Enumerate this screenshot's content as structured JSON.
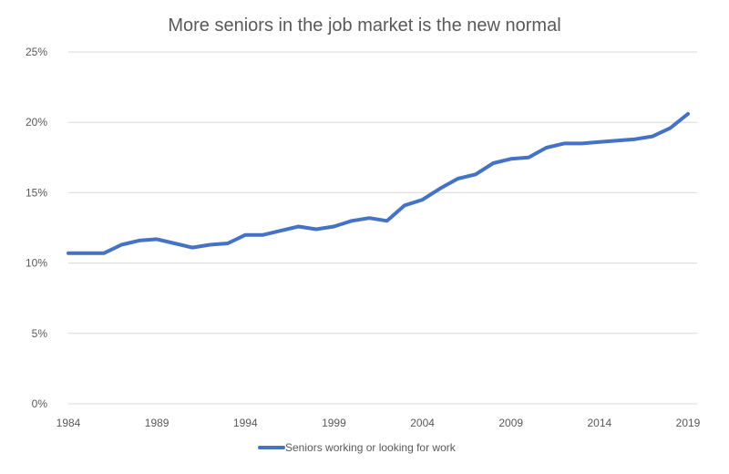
{
  "chart_data": {
    "type": "line",
    "title": "More seniors in the job market is the new normal",
    "xlabel": "",
    "ylabel": "",
    "x": [
      1984,
      1985,
      1986,
      1987,
      1988,
      1989,
      1990,
      1991,
      1992,
      1993,
      1994,
      1995,
      1996,
      1997,
      1998,
      1999,
      2000,
      2001,
      2002,
      2003,
      2004,
      2005,
      2006,
      2007,
      2008,
      2009,
      2010,
      2011,
      2012,
      2013,
      2014,
      2015,
      2016,
      2017,
      2018,
      2019
    ],
    "series": [
      {
        "name": "Seniors working or looking for work",
        "color": "#4472c4",
        "values": [
          10.7,
          10.7,
          10.7,
          11.3,
          11.6,
          11.7,
          11.4,
          11.1,
          11.3,
          11.4,
          12.0,
          12.0,
          12.3,
          12.6,
          12.4,
          12.6,
          13.0,
          13.2,
          13.0,
          14.1,
          14.5,
          15.3,
          16.0,
          16.3,
          17.1,
          17.4,
          17.5,
          18.2,
          18.5,
          18.5,
          18.6,
          18.7,
          18.8,
          19.0,
          19.6,
          20.6
        ]
      }
    ],
    "xlim": [
      1984,
      2019
    ],
    "ylim": [
      0,
      25
    ],
    "x_ticks": [
      "1984",
      "1989",
      "1994",
      "1999",
      "2004",
      "2009",
      "2014",
      "2019"
    ],
    "y_ticks": [
      "0%",
      "5%",
      "10%",
      "15%",
      "20%",
      "25%"
    ],
    "grid": true,
    "legend": "bottom"
  }
}
